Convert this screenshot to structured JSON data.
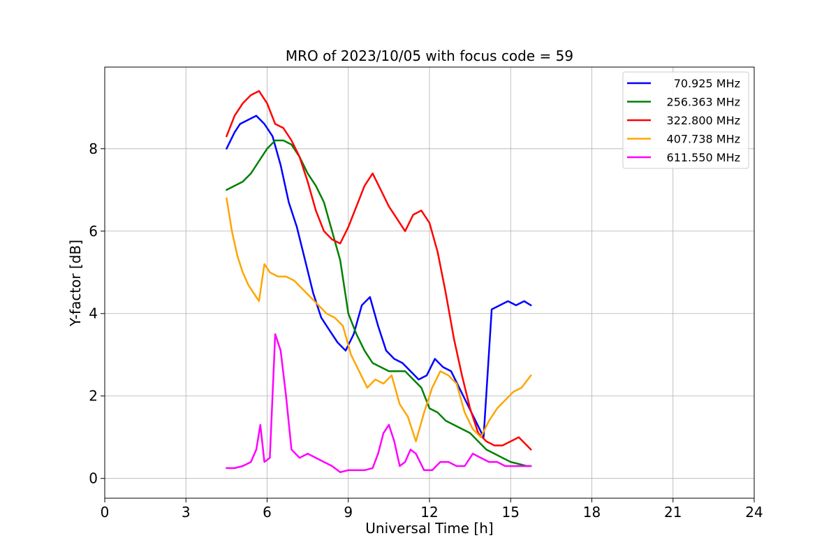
{
  "chart_data": {
    "type": "line",
    "title": "MRO of 2023/10/05 with focus code = 59",
    "xlabel": "Universal Time [h]",
    "ylabel": "Y-factor [dB]",
    "xlim": [
      0,
      24
    ],
    "ylim": [
      -0.48,
      9.98
    ],
    "xticks": [
      0,
      3,
      6,
      9,
      12,
      15,
      18,
      21,
      24
    ],
    "xtick_labels": [
      "0",
      "3",
      "6",
      "9",
      "12",
      "15",
      "18",
      "21",
      "24"
    ],
    "yticks": [
      0,
      2,
      4,
      6,
      8
    ],
    "ytick_labels": [
      "0",
      "2",
      "4",
      "6",
      "8"
    ],
    "grid": true,
    "legend_position": "top-right",
    "series": [
      {
        "name": "70.925 MHz",
        "color": "#0000ff",
        "x": [
          4.5,
          4.8,
          5.0,
          5.3,
          5.6,
          5.9,
          6.2,
          6.5,
          6.8,
          7.1,
          7.4,
          7.7,
          8.0,
          8.3,
          8.6,
          8.9,
          9.2,
          9.5,
          9.8,
          10.1,
          10.4,
          10.7,
          11.0,
          11.3,
          11.6,
          11.9,
          12.2,
          12.5,
          12.8,
          13.1,
          13.4,
          13.7,
          14.0,
          14.3,
          14.6,
          14.9,
          15.2,
          15.5,
          15.75
        ],
        "y": [
          8.0,
          8.4,
          8.6,
          8.7,
          8.8,
          8.6,
          8.3,
          7.6,
          6.7,
          6.1,
          5.3,
          4.5,
          3.9,
          3.6,
          3.3,
          3.1,
          3.5,
          4.2,
          4.4,
          3.7,
          3.1,
          2.9,
          2.8,
          2.6,
          2.4,
          2.5,
          2.9,
          2.7,
          2.6,
          2.2,
          1.8,
          1.4,
          1.0,
          4.1,
          4.2,
          4.3,
          4.2,
          4.3,
          4.2
        ]
      },
      {
        "name": "256.363 MHz",
        "color": "#008000",
        "x": [
          4.5,
          4.8,
          5.1,
          5.4,
          5.7,
          6.0,
          6.3,
          6.6,
          6.9,
          7.2,
          7.5,
          7.8,
          8.1,
          8.4,
          8.7,
          9.0,
          9.3,
          9.6,
          9.9,
          10.2,
          10.5,
          10.8,
          11.1,
          11.4,
          11.7,
          12.0,
          12.3,
          12.6,
          12.9,
          13.2,
          13.5,
          13.8,
          14.1,
          14.4,
          14.7,
          15.0,
          15.3,
          15.6,
          15.75
        ],
        "y": [
          7.0,
          7.1,
          7.2,
          7.4,
          7.7,
          8.0,
          8.2,
          8.2,
          8.1,
          7.8,
          7.4,
          7.1,
          6.7,
          6.0,
          5.3,
          4.0,
          3.5,
          3.1,
          2.8,
          2.7,
          2.6,
          2.6,
          2.6,
          2.4,
          2.2,
          1.7,
          1.6,
          1.4,
          1.3,
          1.2,
          1.1,
          0.9,
          0.7,
          0.6,
          0.5,
          0.4,
          0.35,
          0.3,
          0.3
        ]
      },
      {
        "name": "322.800 MHz",
        "color": "#ff0000",
        "x": [
          4.5,
          4.8,
          5.1,
          5.4,
          5.7,
          6.0,
          6.3,
          6.6,
          6.9,
          7.2,
          7.5,
          7.8,
          8.1,
          8.4,
          8.7,
          9.0,
          9.3,
          9.6,
          9.9,
          10.2,
          10.5,
          10.8,
          11.1,
          11.4,
          11.7,
          12.0,
          12.3,
          12.6,
          12.9,
          13.2,
          13.5,
          13.8,
          14.1,
          14.4,
          14.7,
          15.0,
          15.3,
          15.6,
          15.75
        ],
        "y": [
          8.3,
          8.8,
          9.1,
          9.3,
          9.4,
          9.1,
          8.6,
          8.5,
          8.2,
          7.8,
          7.2,
          6.5,
          6.0,
          5.8,
          5.7,
          6.1,
          6.6,
          7.1,
          7.4,
          7.0,
          6.6,
          6.3,
          6.0,
          6.4,
          6.5,
          6.2,
          5.5,
          4.5,
          3.4,
          2.5,
          1.7,
          1.1,
          0.9,
          0.8,
          0.8,
          0.9,
          1.0,
          0.8,
          0.7
        ]
      },
      {
        "name": "407.738 MHz",
        "color": "#ffa500",
        "x": [
          4.5,
          4.7,
          4.9,
          5.1,
          5.3,
          5.5,
          5.7,
          5.9,
          6.1,
          6.4,
          6.7,
          7.0,
          7.3,
          7.6,
          7.9,
          8.2,
          8.5,
          8.8,
          9.1,
          9.4,
          9.7,
          10.0,
          10.3,
          10.6,
          10.9,
          11.2,
          11.5,
          11.8,
          12.1,
          12.4,
          12.7,
          13.0,
          13.3,
          13.6,
          13.9,
          14.2,
          14.5,
          14.8,
          15.1,
          15.4,
          15.75
        ],
        "y": [
          6.8,
          6.0,
          5.4,
          5.0,
          4.7,
          4.5,
          4.3,
          5.2,
          5.0,
          4.9,
          4.9,
          4.8,
          4.6,
          4.4,
          4.2,
          4.0,
          3.9,
          3.7,
          3.0,
          2.6,
          2.2,
          2.4,
          2.3,
          2.5,
          1.8,
          1.5,
          0.9,
          1.6,
          2.2,
          2.6,
          2.5,
          2.3,
          1.6,
          1.2,
          1.0,
          1.4,
          1.7,
          1.9,
          2.1,
          2.2,
          2.5
        ]
      },
      {
        "name": "611.550 MHz",
        "color": "#ff00ff",
        "x": [
          4.5,
          4.8,
          5.1,
          5.4,
          5.6,
          5.75,
          5.9,
          6.1,
          6.3,
          6.5,
          6.7,
          6.9,
          7.2,
          7.5,
          7.8,
          8.1,
          8.4,
          8.7,
          9.0,
          9.3,
          9.6,
          9.9,
          10.1,
          10.3,
          10.5,
          10.7,
          10.9,
          11.1,
          11.3,
          11.5,
          11.8,
          12.1,
          12.4,
          12.7,
          13.0,
          13.3,
          13.6,
          13.9,
          14.2,
          14.5,
          14.8,
          15.1,
          15.4,
          15.75
        ],
        "y": [
          0.25,
          0.25,
          0.3,
          0.4,
          0.7,
          1.3,
          0.4,
          0.5,
          3.5,
          3.1,
          2.0,
          0.7,
          0.5,
          0.6,
          0.5,
          0.4,
          0.3,
          0.15,
          0.2,
          0.2,
          0.2,
          0.25,
          0.6,
          1.1,
          1.3,
          0.9,
          0.3,
          0.4,
          0.7,
          0.6,
          0.2,
          0.2,
          0.4,
          0.4,
          0.3,
          0.3,
          0.6,
          0.5,
          0.4,
          0.4,
          0.3,
          0.3,
          0.3,
          0.3
        ]
      }
    ]
  }
}
